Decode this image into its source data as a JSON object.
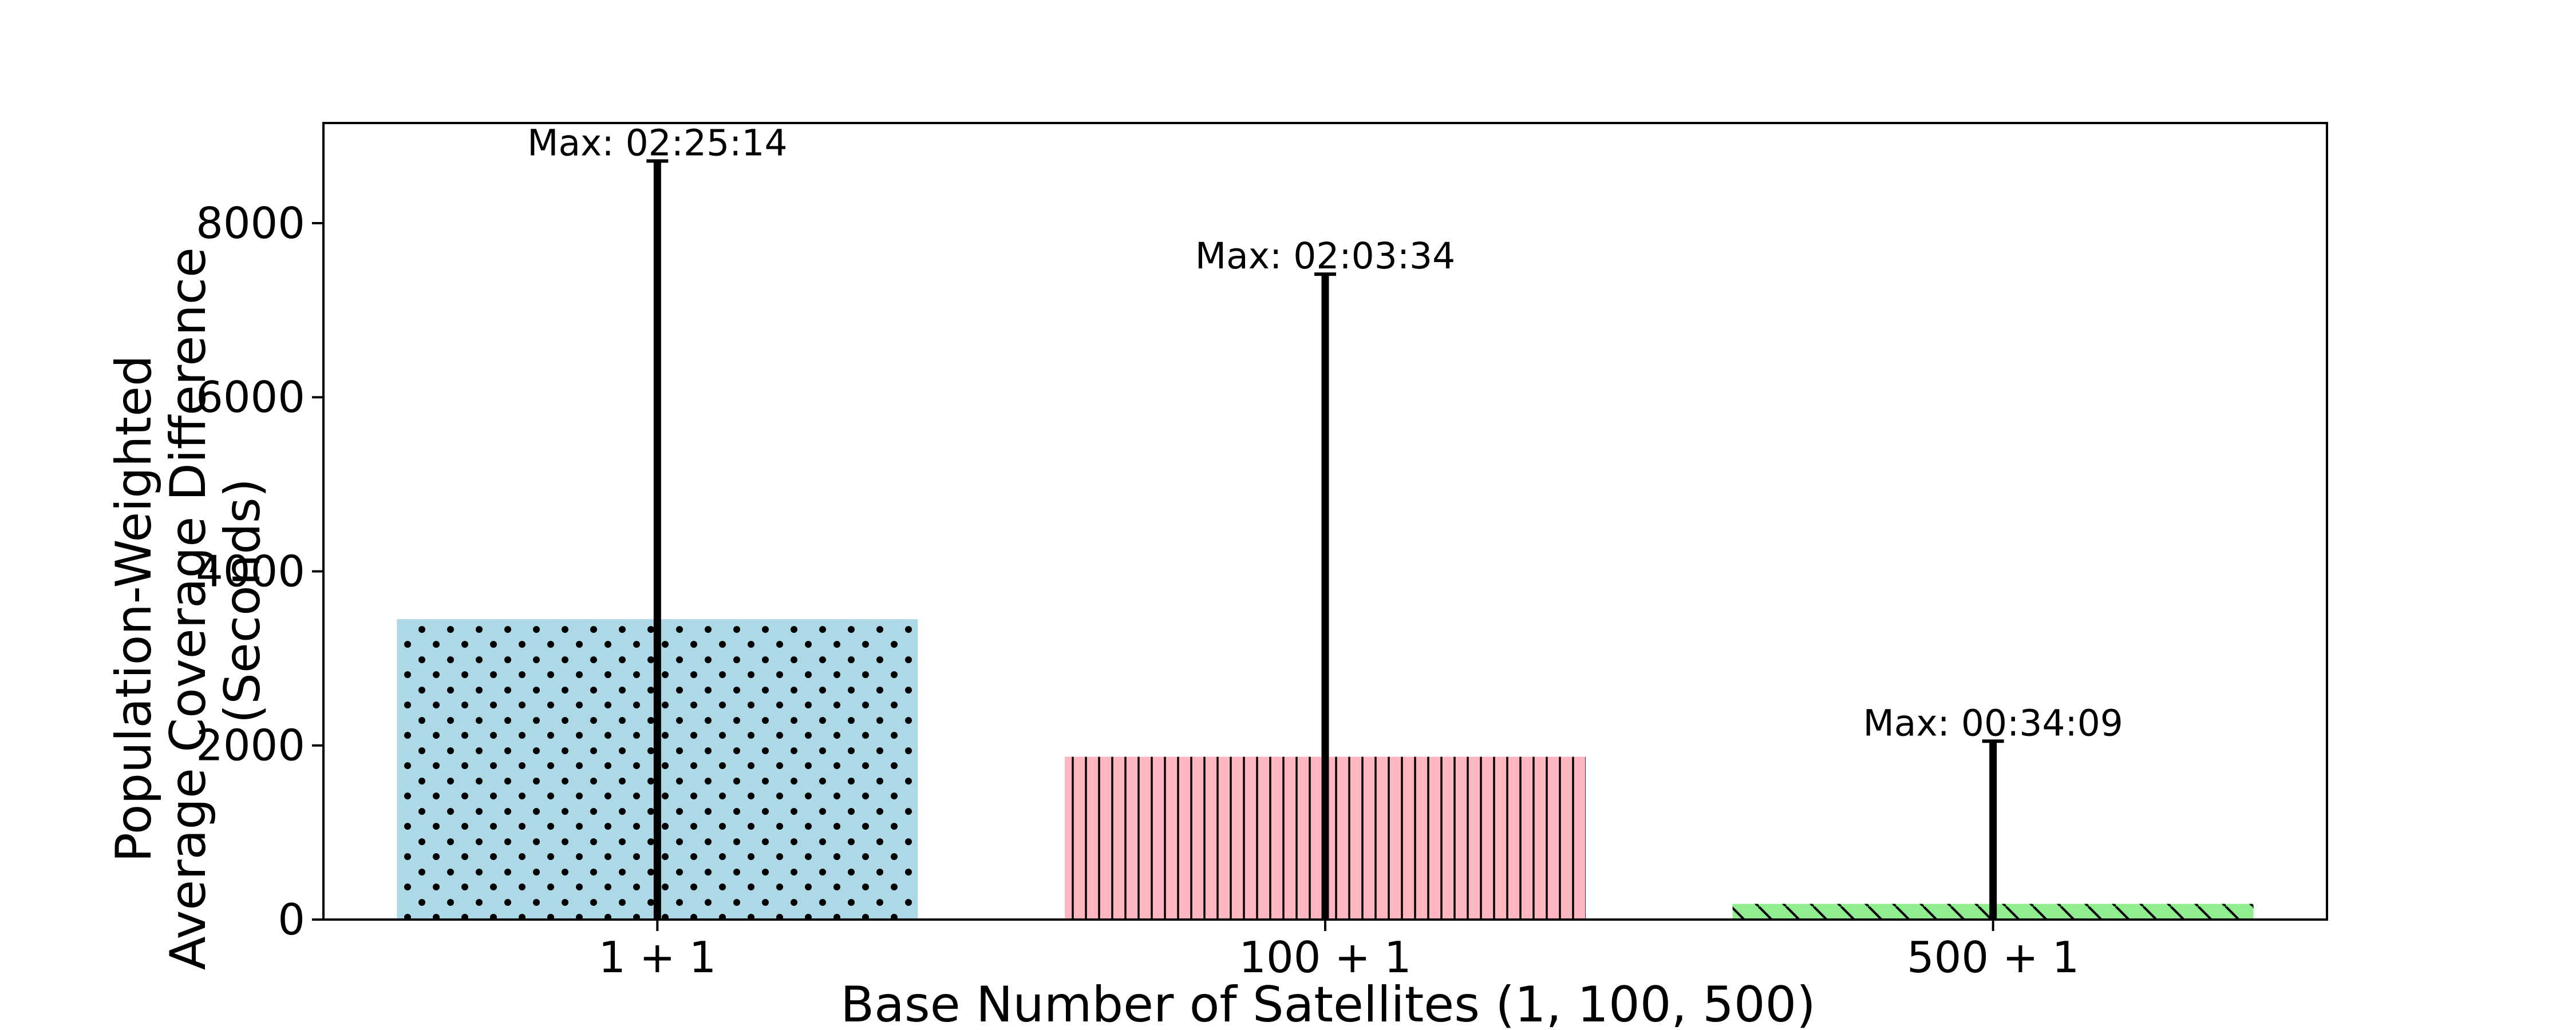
{
  "chart_data": {
    "type": "bar",
    "categories": [
      "1 + 1",
      "100 + 1",
      "500 + 1"
    ],
    "values": [
      3450,
      1870,
      180
    ],
    "error_max": [
      8714,
      7414,
      2049
    ],
    "annotations": [
      "Max: 02:25:14",
      "Max: 02:03:34",
      "Max: 00:34:09"
    ],
    "bar_colors": [
      "#add8e6",
      "#ffb6c1",
      "#90ee90"
    ],
    "bar_hatches": [
      "dots",
      "vertical-lines",
      "diagonal-lines"
    ],
    "title": "",
    "xlabel": "Base Number of Satellites (1, 100, 500)",
    "ylabel_lines": [
      "Population-Weighted",
      "Average Coverage Difference",
      "(Seconds)"
    ],
    "yticks": [
      0,
      2000,
      4000,
      6000,
      8000
    ],
    "ylim": [
      0,
      9150
    ],
    "grid": false,
    "legend": false
  }
}
